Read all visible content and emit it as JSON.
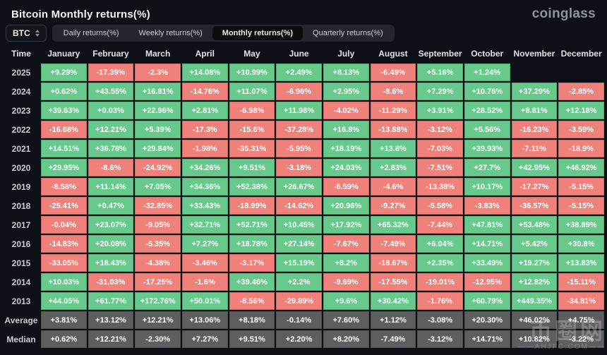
{
  "header": {
    "title": "Bitcoin Monthly returns(%)",
    "logo": "coinglass"
  },
  "toolbar": {
    "symbol_selector": {
      "value": "BTC"
    },
    "tabs": [
      {
        "label": "Daily returns(%)",
        "active": false
      },
      {
        "label": "Weekly returns(%)",
        "active": false
      },
      {
        "label": "Monthly returns(%)",
        "active": true
      },
      {
        "label": "Quarterly returns(%)",
        "active": false
      }
    ]
  },
  "table": {
    "time_column_header": "Time",
    "month_columns": [
      "January",
      "February",
      "March",
      "April",
      "May",
      "June",
      "July",
      "August",
      "September",
      "October",
      "November",
      "December"
    ],
    "rows": [
      {
        "label": "2025",
        "kind": "year",
        "values": [
          "+9.29%",
          "-17.39%",
          "-2.3%",
          "+14.08%",
          "+10.99%",
          "+2.49%",
          "+8.13%",
          "-6.49%",
          "+5.16%",
          "+1.24%",
          null,
          null
        ]
      },
      {
        "label": "2024",
        "kind": "year",
        "values": [
          "+0.62%",
          "+43.55%",
          "+16.81%",
          "-14.76%",
          "+11.07%",
          "-6.96%",
          "+2.95%",
          "-8.6%",
          "+7.29%",
          "+10.76%",
          "+37.29%",
          "-2.85%"
        ]
      },
      {
        "label": "2023",
        "kind": "year",
        "values": [
          "+39.63%",
          "+0.03%",
          "+22.96%",
          "+2.81%",
          "-6.98%",
          "+11.98%",
          "-4.02%",
          "-11.29%",
          "+3.91%",
          "+28.52%",
          "+8.81%",
          "+12.18%"
        ]
      },
      {
        "label": "2022",
        "kind": "year",
        "values": [
          "-16.68%",
          "+12.21%",
          "+5.39%",
          "-17.3%",
          "-15.6%",
          "-37.28%",
          "+16.8%",
          "-13.88%",
          "-3.12%",
          "+5.56%",
          "-16.23%",
          "-3.59%"
        ]
      },
      {
        "label": "2021",
        "kind": "year",
        "values": [
          "+14.51%",
          "+36.78%",
          "+29.84%",
          "-1.98%",
          "-35.31%",
          "-5.95%",
          "+18.19%",
          "+13.8%",
          "-7.03%",
          "+39.93%",
          "-7.11%",
          "-18.9%"
        ]
      },
      {
        "label": "2020",
        "kind": "year",
        "values": [
          "+29.95%",
          "-8.6%",
          "-24.92%",
          "+34.26%",
          "+9.51%",
          "-3.18%",
          "+24.03%",
          "+2.83%",
          "-7.51%",
          "+27.7%",
          "+42.95%",
          "+46.92%"
        ]
      },
      {
        "label": "2019",
        "kind": "year",
        "values": [
          "-8.58%",
          "+11.14%",
          "+7.05%",
          "+34.36%",
          "+52.38%",
          "+26.67%",
          "-6.59%",
          "-4.6%",
          "-13.38%",
          "+10.17%",
          "-17.27%",
          "-5.15%"
        ]
      },
      {
        "label": "2018",
        "kind": "year",
        "values": [
          "-25.41%",
          "+0.47%",
          "-32.85%",
          "+33.43%",
          "-18.99%",
          "-14.62%",
          "+20.96%",
          "-9.27%",
          "-5.58%",
          "-3.83%",
          "-36.57%",
          "-5.15%"
        ]
      },
      {
        "label": "2017",
        "kind": "year",
        "values": [
          "-0.04%",
          "+23.07%",
          "-9.05%",
          "+32.71%",
          "+52.71%",
          "+10.45%",
          "+17.92%",
          "+65.32%",
          "-7.44%",
          "+47.81%",
          "+53.48%",
          "+38.89%"
        ]
      },
      {
        "label": "2016",
        "kind": "year",
        "values": [
          "-14.83%",
          "+20.08%",
          "-5.35%",
          "+7.27%",
          "+18.78%",
          "+27.14%",
          "-7.67%",
          "-7.49%",
          "+6.04%",
          "+14.71%",
          "+5.42%",
          "+30.8%"
        ]
      },
      {
        "label": "2015",
        "kind": "year",
        "values": [
          "-33.05%",
          "+18.43%",
          "-4.38%",
          "-3.46%",
          "-3.17%",
          "+15.19%",
          "+8.2%",
          "-18.67%",
          "+2.35%",
          "+33.49%",
          "+19.27%",
          "+13.83%"
        ]
      },
      {
        "label": "2014",
        "kind": "year",
        "values": [
          "+10.03%",
          "-31.03%",
          "-17.25%",
          "-1.6%",
          "+39.46%",
          "+2.2%",
          "-9.69%",
          "-17.55%",
          "-19.01%",
          "-12.95%",
          "+12.82%",
          "-15.11%"
        ]
      },
      {
        "label": "2013",
        "kind": "year",
        "values": [
          "+44.05%",
          "+61.77%",
          "+172.76%",
          "+50.01%",
          "-8.56%",
          "-29.89%",
          "+9.6%",
          "+30.42%",
          "-1.76%",
          "+60.79%",
          "+449.35%",
          "-34.81%"
        ]
      },
      {
        "label": "Average",
        "kind": "summary",
        "values": [
          "+3.81%",
          "+13.12%",
          "+12.21%",
          "+13.06%",
          "+8.18%",
          "-0.14%",
          "+7.60%",
          "+1.12%",
          "-3.08%",
          "+20.30%",
          "+46.02%",
          "+4.75%"
        ]
      },
      {
        "label": "Median",
        "kind": "summary",
        "values": [
          "+0.62%",
          "+12.21%",
          "-2.30%",
          "+7.27%",
          "+9.51%",
          "+2.20%",
          "+8.20%",
          "-7.49%",
          "-3.12%",
          "+14.71%",
          "+10.82%",
          "-3.22%"
        ]
      }
    ]
  },
  "colors": {
    "positive": "#68c98c",
    "negative": "#f0807a",
    "summary": "#5d5e61",
    "background": "#0d1016"
  },
  "watermark": {
    "text": "币圈网",
    "subtext": "——AHJFC.COM——"
  }
}
